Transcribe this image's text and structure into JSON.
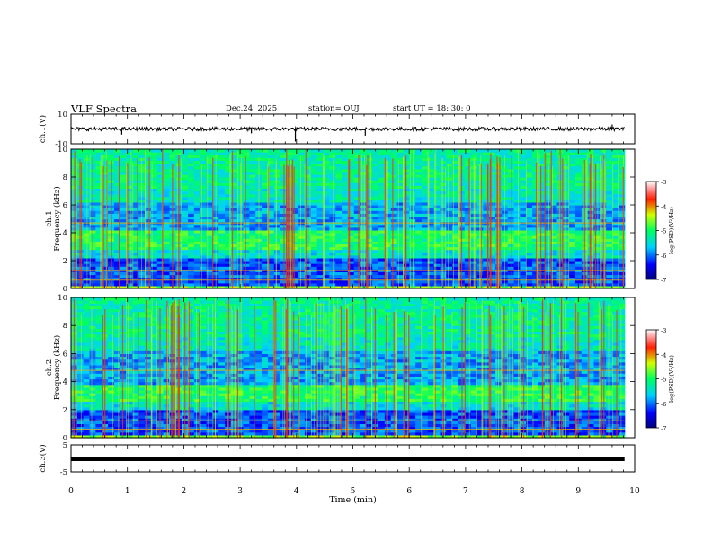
{
  "header": {
    "title": "VLF Spectra",
    "date": "Dec.24, 2025",
    "station": "station= OUJ",
    "start": "start  UT =   18: 30: 0"
  },
  "chart_data": [
    {
      "type": "line",
      "panel": "ch1-waveform",
      "ylabel": "ch.1(V)",
      "ylim": [
        -10,
        10
      ],
      "yticks": [
        "10",
        "-10"
      ],
      "xlim": [
        0,
        10
      ],
      "trace_extent": [
        0,
        9.82
      ],
      "baseline": 0,
      "noise_amplitude": 1.2,
      "spikes": [
        {
          "x": 0.9,
          "y": -3.8
        },
        {
          "x": 3.2,
          "y": -3.0
        },
        {
          "x": 3.98,
          "y": -8.5
        },
        {
          "x": 5.22,
          "y": -4.5
        },
        {
          "x": 9.6,
          "y": 3.0
        }
      ]
    },
    {
      "type": "heatmap",
      "panel": "ch1-spectrogram",
      "ylabel": "ch.1",
      "ylabel2": "Frequency (kHz)",
      "ylim": [
        0,
        10
      ],
      "yticks": [
        "0",
        "2",
        "4",
        "6",
        "8",
        "10"
      ],
      "xlim": [
        0,
        10
      ],
      "data_extent": [
        0,
        9.82
      ],
      "low_band_khz": [
        0.3,
        2.2
      ],
      "mid_band_khz": [
        2.8,
        4.2
      ],
      "line_khz": [
        4.7,
        1.3,
        0.6
      ],
      "colorbar": {
        "min": -7,
        "max": -3,
        "ticks": [
          "-3",
          "-4",
          "-5",
          "-6",
          "-7"
        ],
        "label": "log(PSD)(V²/Hz)"
      }
    },
    {
      "type": "heatmap",
      "panel": "ch2-spectrogram",
      "ylabel": "ch.2",
      "ylabel2": "Frequency (kHz)",
      "ylim": [
        0,
        10
      ],
      "yticks": [
        "0",
        "2",
        "4",
        "6",
        "8",
        "10"
      ],
      "xlim": [
        0,
        10
      ],
      "data_extent": [
        0,
        9.82
      ],
      "low_band_khz": [
        0.3,
        2.0
      ],
      "mid_band_khz": [
        2.7,
        3.9
      ],
      "line_khz": [
        4.8,
        1.2,
        0.6
      ],
      "colorbar": {
        "min": -7,
        "max": -3,
        "ticks": [
          "-3",
          "-4",
          "-5",
          "-6",
          "-7"
        ],
        "label": "log(PSD)(V²/Hz)"
      }
    },
    {
      "type": "line",
      "panel": "ch3-waveform",
      "ylabel": "ch.3(V)",
      "ylim": [
        -5,
        5
      ],
      "yticks": [
        "5",
        "-5"
      ],
      "xlim": [
        0,
        10
      ],
      "trace_extent": [
        0,
        9.82
      ],
      "baseline": 0
    }
  ],
  "xaxis": {
    "label": "Time (min)",
    "ticks": [
      "0",
      "1",
      "2",
      "3",
      "4",
      "5",
      "6",
      "7",
      "8",
      "9",
      "10"
    ]
  }
}
